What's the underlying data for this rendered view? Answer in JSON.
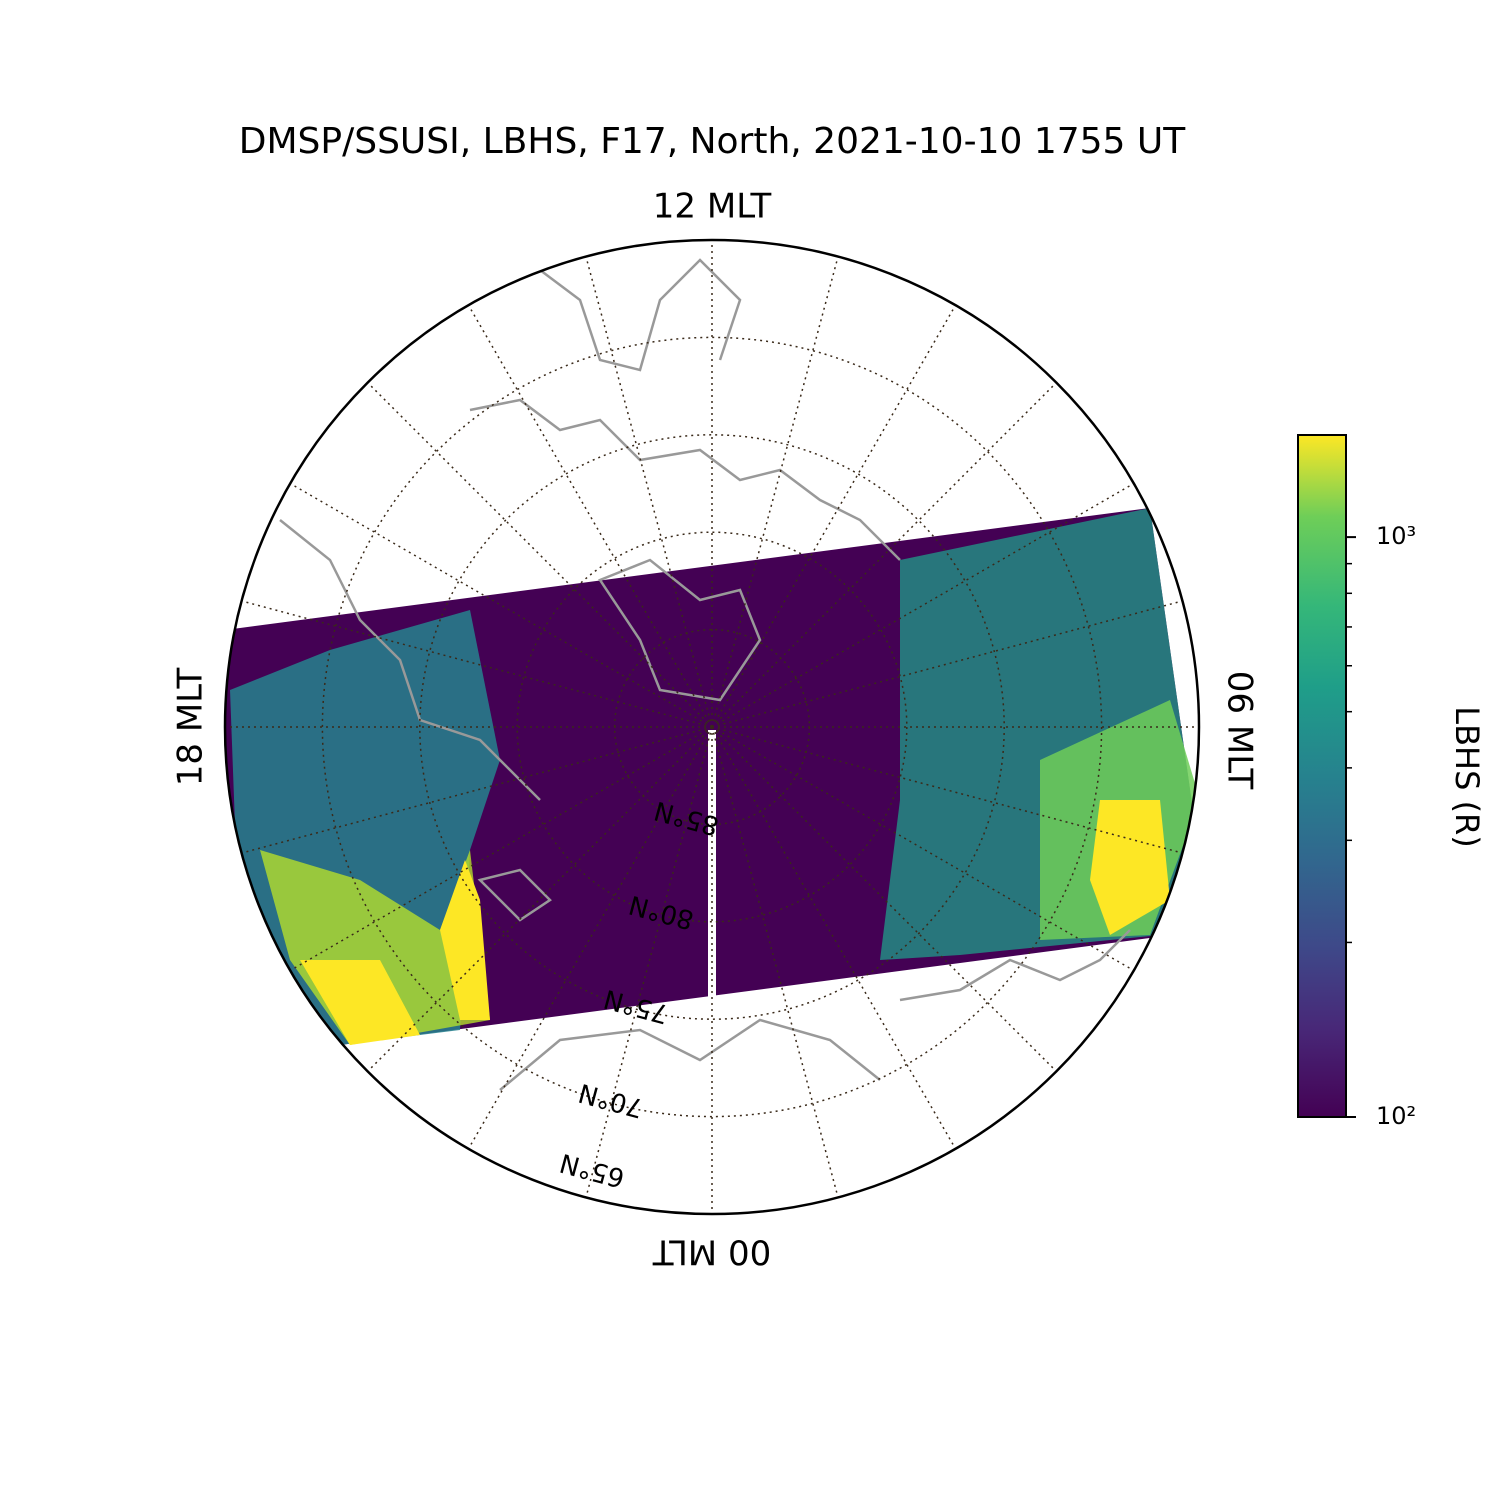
{
  "map": {
    "title": "DMSP/SSUSI, LBHS, F17, North, 2021-10-10 1755 UT",
    "mlt_labels": {
      "top": "12 MLT",
      "left": "18 MLT",
      "right": "06 MLT",
      "bottom": "00 MLT"
    },
    "lat_lim": [
      65,
      90
    ],
    "lat_ticks": [
      {
        "value": 85,
        "label": "85°N"
      },
      {
        "value": 80,
        "label": "80°N"
      },
      {
        "value": 75,
        "label": "75°N"
      },
      {
        "value": 70,
        "label": "70°N"
      },
      {
        "value": 65,
        "label": "65°N"
      }
    ],
    "colorbar": {
      "label": "LBHS (R)",
      "log": true,
      "clim": [
        100,
        1500
      ],
      "ticks": [
        {
          "value": 100,
          "label": "10²"
        },
        {
          "value": 1000,
          "label": "10³"
        }
      ],
      "minor_ticks": [
        200,
        300,
        400,
        500,
        600,
        700,
        800,
        900
      ]
    }
  }
}
